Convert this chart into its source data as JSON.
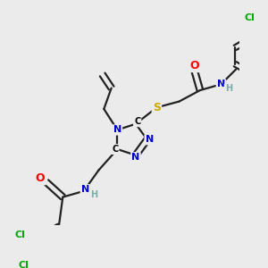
{
  "bg_color": "#ebebeb",
  "atom_colors": {
    "C": "#000000",
    "N": "#0000cc",
    "O": "#ff0000",
    "S": "#ccaa00",
    "Cl": "#00aa00",
    "H": "#7aacac"
  },
  "bond_color": "#222222",
  "bond_width": 1.6,
  "figsize": [
    3.0,
    3.0
  ],
  "dpi": 100
}
